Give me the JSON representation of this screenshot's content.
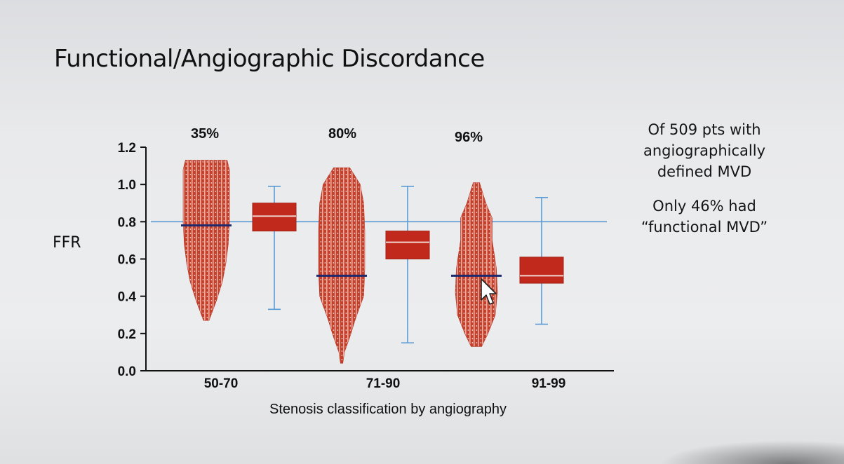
{
  "slide": {
    "title": "Functional/Angiographic Discordance",
    "note_lines": [
      "Of 509 pts with",
      "angiographically",
      "defined MVD"
    ],
    "note2_lines": [
      "Only 46% had",
      "“functional MVD”"
    ]
  },
  "chart_data": {
    "type": "box",
    "ylabel": "FFR",
    "xlabel": "Stenosis classification by angiography",
    "ylim": [
      0,
      1.2
    ],
    "yticks": [
      "0.0",
      "0.2",
      "0.4",
      "0.6",
      "0.8",
      "1.0",
      "1.2"
    ],
    "reference_line": 0.8,
    "grid": false,
    "groups": [
      {
        "category": "50-70",
        "percent": "35%",
        "scatter_range": [
          0.27,
          1.13
        ],
        "scatter_median": 0.78,
        "box": {
          "whisker_low": 0.33,
          "q1": 0.75,
          "median": 0.83,
          "q3": 0.9,
          "whisker_high": 0.99
        }
      },
      {
        "category": "71-90",
        "percent": "80%",
        "scatter_range": [
          0.04,
          1.09
        ],
        "scatter_median": 0.51,
        "box": {
          "whisker_low": 0.15,
          "q1": 0.6,
          "median": 0.69,
          "q3": 0.75,
          "whisker_high": 0.99
        }
      },
      {
        "category": "91-99",
        "percent": "96%",
        "scatter_range": [
          0.13,
          1.01
        ],
        "scatter_median": 0.51,
        "box": {
          "whisker_low": 0.25,
          "q1": 0.47,
          "median": 0.51,
          "q3": 0.61,
          "whisker_high": 0.93
        }
      }
    ],
    "colors": {
      "box": "#c0291c",
      "whisker": "#5b9bd5",
      "median_line": "#1d2a6e",
      "axis": "#111111"
    }
  }
}
